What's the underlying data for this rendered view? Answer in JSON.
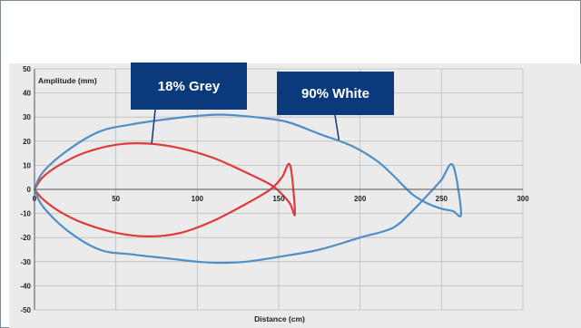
{
  "chart_data": {
    "type": "line",
    "xlabel": "Distance (cm)",
    "ylabel": "Amplitude (mm)",
    "xlim": [
      0,
      300
    ],
    "ylim": [
      -50,
      50
    ],
    "xticks": [
      0,
      50,
      100,
      150,
      200,
      250,
      300
    ],
    "yticks": [
      50,
      40,
      30,
      20,
      10,
      0,
      -10,
      -20,
      -30,
      -40,
      -50
    ],
    "grid": true,
    "series": [
      {
        "name": "18% Grey",
        "color": "#e03a3a",
        "x": [
          0,
          5,
          15,
          30,
          50,
          70,
          90,
          110,
          130,
          145,
          152,
          157,
          160,
          157,
          152,
          145,
          130,
          110,
          90,
          70,
          50,
          30,
          15,
          5,
          0
        ],
        "y": [
          0,
          5,
          10,
          15,
          18.5,
          19,
          17,
          13,
          7,
          2,
          -2,
          -6,
          -10,
          10,
          5,
          0,
          -6,
          -13,
          -18,
          -19.5,
          -18,
          -14,
          -9,
          -4,
          0
        ]
      },
      {
        "name": "90% White",
        "color": "#4f8fc6",
        "x": [
          0,
          5,
          20,
          40,
          60,
          80,
          100,
          115,
          135,
          155,
          175,
          195,
          210,
          220,
          232,
          242,
          250,
          257,
          262,
          257,
          250,
          242,
          232,
          220,
          200,
          175,
          150,
          130,
          115,
          100,
          80,
          60,
          40,
          20,
          5,
          0
        ],
        "y": [
          0,
          7,
          16,
          24,
          27,
          29,
          30.5,
          31,
          30,
          28,
          23,
          18,
          12,
          6,
          -2,
          -6,
          -8,
          -9,
          -10,
          10,
          4,
          -2,
          -9,
          -16,
          -20,
          -25,
          -28,
          -30,
          -30.5,
          -30,
          -28.5,
          -27,
          -25,
          -17,
          -7,
          0
        ]
      }
    ]
  },
  "callouts": {
    "grey_label": "18% Grey",
    "white_label": "90% White"
  }
}
